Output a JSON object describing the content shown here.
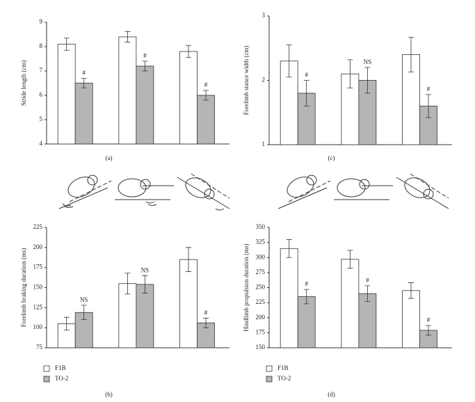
{
  "chart_data": [
    {
      "type": "bar",
      "caption": "(a)",
      "ylabel": "Stride length (cm)",
      "categories": [
        null,
        null,
        null
      ],
      "ylim": [
        4,
        9
      ],
      "yticks": [
        4,
        5,
        6,
        7,
        8,
        9
      ],
      "series": [
        {
          "name": "F1B",
          "color": "#ffffff",
          "values": [
            8.1,
            8.4,
            7.8
          ],
          "errors": [
            0.25,
            0.22,
            0.25
          ]
        },
        {
          "name": "TO-2",
          "color": "#b5b5b5",
          "values": [
            6.5,
            7.2,
            6.0
          ],
          "errors": [
            0.2,
            0.2,
            0.2
          ],
          "labels": [
            "#",
            "#",
            "#"
          ]
        }
      ]
    },
    {
      "type": "bar",
      "caption": "(b)",
      "ylabel": "Forelimb braking duration (ms)",
      "categories": [
        null,
        null,
        null
      ],
      "ylim": [
        75,
        225
      ],
      "yticks": [
        75,
        100,
        125,
        150,
        175,
        200,
        225
      ],
      "legend": "bottom-left",
      "series": [
        {
          "name": "F1B",
          "color": "#ffffff",
          "values": [
            105,
            155,
            185
          ],
          "errors": [
            8,
            13,
            15
          ]
        },
        {
          "name": "TO-2",
          "color": "#b5b5b5",
          "values": [
            119,
            154,
            106
          ],
          "errors": [
            9,
            11,
            6
          ],
          "labels": [
            "NS",
            "NS",
            "#"
          ]
        }
      ]
    },
    {
      "type": "bar",
      "caption": "(c)",
      "ylabel": "Forelimb stance width (cm)",
      "categories": [
        null,
        null,
        null
      ],
      "ylim": [
        1,
        3
      ],
      "yticks": [
        1,
        2,
        3
      ],
      "series": [
        {
          "name": "F1B",
          "color": "#ffffff",
          "values": [
            2.3,
            2.1,
            2.4
          ],
          "errors": [
            0.25,
            0.22,
            0.27
          ]
        },
        {
          "name": "TO-2",
          "color": "#b5b5b5",
          "values": [
            1.8,
            2.0,
            1.6
          ],
          "errors": [
            0.2,
            0.2,
            0.18
          ],
          "labels": [
            "#",
            "NS",
            "#"
          ]
        }
      ]
    },
    {
      "type": "bar",
      "caption": "(d)",
      "ylabel": "Hindlimb propulsion duration (ms)",
      "categories": [
        null,
        null,
        null
      ],
      "ylim": [
        150,
        350
      ],
      "yticks": [
        150,
        175,
        200,
        225,
        250,
        275,
        300,
        325,
        350
      ],
      "legend": "bottom-left",
      "series": [
        {
          "name": "F1B",
          "color": "#ffffff",
          "values": [
            315,
            297,
            245
          ],
          "errors": [
            15,
            15,
            13
          ]
        },
        {
          "name": "TO-2",
          "color": "#b5b5b5",
          "values": [
            235,
            240,
            179
          ],
          "errors": [
            12,
            13,
            8
          ],
          "labels": [
            "#",
            "#",
            "#"
          ]
        }
      ]
    }
  ]
}
